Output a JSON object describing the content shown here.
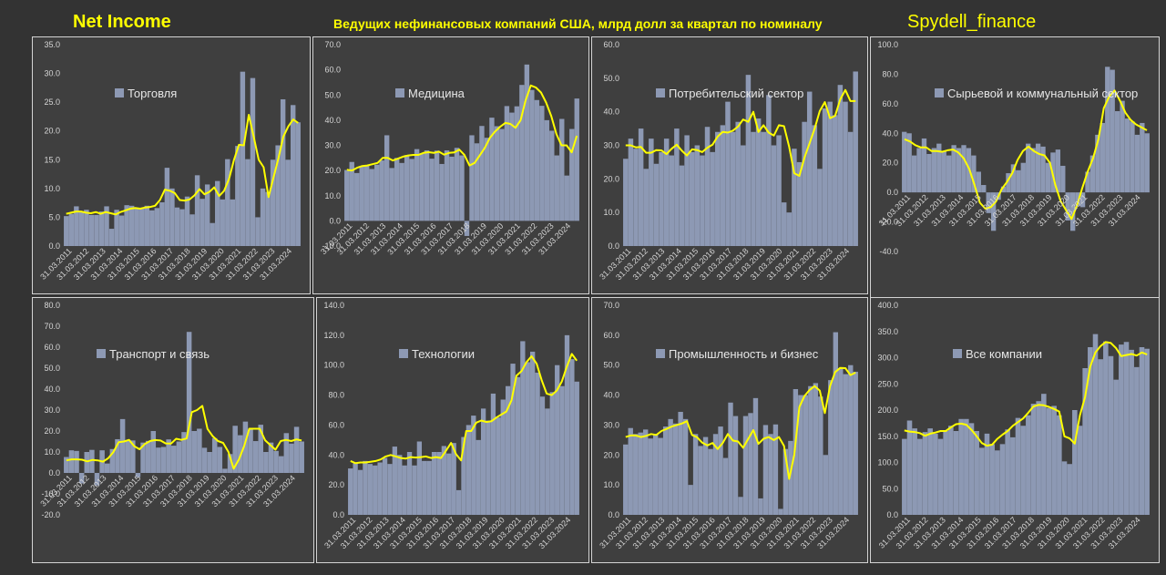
{
  "header": {
    "left_title": "Net Income",
    "center_title": "Ведущих нефинансовых компаний США, млрд долл за квартал по номиналу",
    "right_title": "Spydell_finance"
  },
  "colors": {
    "bar": "#8d99b4",
    "line": "#ffff00",
    "panel": "#3f3f3f",
    "border": "#d4d4d4",
    "tick": "#d6d6d6"
  },
  "chart_data": [
    {
      "type": "bar",
      "legend": "Торговля",
      "ylim": [
        0,
        35
      ],
      "ytick_step": 5,
      "ytick_decimals": 1,
      "x_labels": [
        "31.03.2011",
        "31.03.2012",
        "31.03.2013",
        "31.03.2014",
        "31.03.2015",
        "31.03.2016",
        "31.03.2017",
        "31.03.2018",
        "31.03.2019",
        "31.03.2020",
        "31.03.2021",
        "31.03.2022",
        "31.03.2023",
        "31.03.2024"
      ],
      "values": [
        5.2,
        5.6,
        6.9,
        6.0,
        6.3,
        5.4,
        5.4,
        6.0,
        6.9,
        3.0,
        6.3,
        5.3,
        7.1,
        7.0,
        6.6,
        6.5,
        7.0,
        6.2,
        6.6,
        7.6,
        13.6,
        10.0,
        6.7,
        6.4,
        8.6,
        5.5,
        12.3,
        8.2,
        10.7,
        4.0,
        11.3,
        8.1,
        15.1,
        8.1,
        17.4,
        30.3,
        15.1,
        29.2,
        5.0,
        10.0,
        9.4,
        15.0,
        17.5,
        25.5,
        15.0,
        24.5,
        21.5
      ],
      "moving_avg": [
        5.6,
        5.8,
        6.0,
        6.0,
        5.8,
        5.7,
        5.9,
        5.6,
        5.9,
        5.7,
        5.5,
        5.9,
        6.2,
        6.5,
        6.6,
        6.5,
        6.7,
        6.8,
        7.0,
        8.0,
        9.8,
        9.6,
        9.2,
        8.0,
        7.9,
        8.1,
        8.8,
        9.9,
        9.0,
        9.4,
        10.2,
        8.7,
        9.6,
        11.7,
        15.0,
        17.6,
        17.5,
        22.8,
        19.0,
        15.0,
        13.7,
        8.5,
        11.9,
        15.2,
        19.0,
        20.8,
        22.0,
        21.4
      ]
    },
    {
      "type": "bar",
      "legend": "Медицина",
      "ylim": [
        -10,
        70
      ],
      "ytick_step": 10,
      "ytick_decimals": 1,
      "x_labels": [
        "31.03.2011",
        "31.03.2012",
        "31.03.2013",
        "31.03.2014",
        "31.03.2015",
        "31.03.2016",
        "31.03.2017",
        "31.03.2018",
        "31.03.2019",
        "31.03.2020",
        "31.03.2021",
        "31.03.2022",
        "31.03.2023",
        "31.03.2024"
      ],
      "values": [
        20.2,
        23.4,
        19.0,
        21.7,
        22.0,
        20.6,
        22.3,
        24.0,
        34.0,
        21.0,
        25.0,
        23.0,
        26.1,
        24.6,
        28.5,
        26.8,
        28.0,
        24.7,
        27.9,
        22.6,
        28.0,
        25.5,
        29.0,
        26.0,
        -6.0,
        34.0,
        30.8,
        37.7,
        33.0,
        41.0,
        37.6,
        36.5,
        45.6,
        43.0,
        45.5,
        54.0,
        62.1,
        52.0,
        48.0,
        45.7,
        40.0,
        35.8,
        26.0,
        40.5,
        18.0,
        36.5,
        48.6
      ],
      "moving_avg": [
        20.3,
        20.0,
        21.1,
        21.8,
        22.0,
        22.5,
        23.0,
        25.0,
        25.0,
        24.0,
        24.7,
        25.5,
        26.0,
        26.2,
        26.2,
        27.0,
        27.3,
        27.0,
        27.5,
        26.3,
        27.0,
        27.2,
        28.3,
        26.2,
        22.0,
        23.0,
        26.0,
        29.0,
        33.0,
        35.5,
        37.4,
        38.9,
        38.5,
        37.0,
        40.0,
        48.0,
        53.8,
        53.0,
        51.0,
        47.0,
        41.6,
        34.5,
        30.0,
        30.0,
        27.2,
        33.8
      ]
    },
    {
      "type": "bar",
      "legend": "Потребительский сектор",
      "ylim": [
        0,
        60
      ],
      "ytick_step": 10,
      "ytick_decimals": 1,
      "x_labels": [
        "31.03.2011",
        "31.03.2012",
        "31.03.2013",
        "31.03.2014",
        "31.03.2015",
        "31.03.2016",
        "31.03.2017",
        "31.03.2018",
        "31.03.2019",
        "31.03.2020",
        "31.03.2021",
        "31.03.2022",
        "31.03.2023",
        "31.03.2024"
      ],
      "values": [
        26.0,
        32.0,
        29.0,
        35.0,
        23.0,
        32.0,
        24.5,
        28.0,
        32.0,
        27.0,
        35.0,
        24.0,
        33.0,
        28.0,
        30.0,
        27.0,
        35.5,
        28.0,
        34.0,
        36.0,
        43.0,
        34.0,
        37.0,
        30.0,
        51.0,
        34.0,
        38.0,
        34.0,
        45.0,
        30.0,
        33.0,
        13.0,
        10.0,
        29.0,
        25.0,
        37.0,
        46.0,
        36.0,
        23.0,
        41.0,
        43.0,
        39.0,
        48.0,
        43.0,
        34.0,
        52.0
      ],
      "moving_avg": [
        30.0,
        30.0,
        29.4,
        29.5,
        27.8,
        27.8,
        28.6,
        28.5,
        27.4,
        29.0,
        30.2,
        28.4,
        27.0,
        28.8,
        28.6,
        28.0,
        29.3,
        30.2,
        32.6,
        34.0,
        33.8,
        34.4,
        35.6,
        37.7,
        37.0,
        40.0,
        34.0,
        36.0,
        33.8,
        32.9,
        36.0,
        35.7,
        29.6,
        21.7,
        20.9,
        26.3,
        30.6,
        35.0,
        40.2,
        42.9,
        38.1,
        38.8,
        43.7,
        46.5,
        43.2,
        43.2
      ]
    },
    {
      "type": "bar",
      "legend": "Сырьевой и коммунальный сектор",
      "ylim": [
        -40,
        100
      ],
      "ytick_step": 20,
      "ytick_decimals": 1,
      "x_labels": [
        "31.03.2011",
        "31.03.2012",
        "31.03.2013",
        "31.03.2014",
        "31.03.2015",
        "31.03.2016",
        "31.03.2017",
        "31.03.2018",
        "31.03.2019",
        "31.03.2020",
        "31.03.2021",
        "31.03.2022",
        "31.03.2023",
        "31.03.2024"
      ],
      "values": [
        41.0,
        40.0,
        25.0,
        30.0,
        36.5,
        26.0,
        30.0,
        33.0,
        28.0,
        25.0,
        32.0,
        30.0,
        32.0,
        30.0,
        25.0,
        14.0,
        5.0,
        -14.0,
        -26.0,
        -5.0,
        4.0,
        13.0,
        19.0,
        15.0,
        20.0,
        33.0,
        30.0,
        33.0,
        31.0,
        20.0,
        27.0,
        29.0,
        18.0,
        -19.0,
        -26.0,
        -9.0,
        -10.0,
        14.0,
        25.0,
        39.0,
        47.0,
        85.0,
        83.0,
        55.0,
        62.0,
        50.0,
        48.0,
        39.0,
        47.0,
        40.0
      ],
      "moving_avg": [
        36.0,
        34.5,
        32.0,
        30.5,
        30.5,
        28.0,
        28.0,
        27.5,
        28.5,
        29.0,
        27.0,
        23.0,
        16.0,
        5.0,
        -7.0,
        -11.0,
        -10.0,
        -6.0,
        2.0,
        7.0,
        13.0,
        22.0,
        28.0,
        31.0,
        28.0,
        26.0,
        25.0,
        20.0,
        5.0,
        -6.0,
        -12.0,
        -18.0,
        -9.0,
        3.0,
        14.0,
        23.0,
        36.0,
        57.0,
        65.0,
        69.0,
        62.0,
        54.0,
        49.0,
        46.0,
        44.0,
        42.0
      ]
    },
    {
      "type": "bar",
      "legend": "Транспорт и связь",
      "ylim": [
        -20,
        80
      ],
      "ytick_step": 10,
      "ytick_decimals": 1,
      "x_labels": [
        "31.03.2011",
        "31.03.2012",
        "31.03.2013",
        "31.03.2014",
        "31.03.2015",
        "31.03.2016",
        "31.03.2017",
        "31.03.2018",
        "31.03.2019",
        "31.03.2020",
        "31.03.2021",
        "31.03.2022",
        "31.03.2023",
        "31.03.2024"
      ],
      "values": [
        7.6,
        10.8,
        10.5,
        -5.0,
        10.0,
        11.0,
        -6.0,
        10.8,
        4.5,
        11.4,
        16.1,
        25.7,
        15.3,
        15.5,
        -2.0,
        14.5,
        15.3,
        20.0,
        12.1,
        12.4,
        16.0,
        13.0,
        15.0,
        19.5,
        67.3,
        20.0,
        21.1,
        12.0,
        10.0,
        16.6,
        12.4,
        2.0,
        9.0,
        22.5,
        18.0,
        24.5,
        21.0,
        15.2,
        23.0,
        10.0,
        14.5,
        10.5,
        8.0,
        19.0,
        14.0,
        22.0,
        15.0
      ],
      "moving_avg": [
        6.0,
        6.5,
        6.5,
        6.3,
        5.5,
        6.2,
        6.0,
        5.4,
        7.0,
        10.0,
        14.7,
        15.0,
        15.8,
        12.7,
        11.3,
        13.8,
        15.2,
        15.7,
        15.5,
        14.1,
        14.0,
        16.3,
        15.8,
        16.5,
        29.0,
        30.0,
        32.0,
        21.0,
        17.5,
        15.2,
        14.3,
        10.0,
        2.0,
        6.5,
        12.8,
        21.1,
        21.1,
        21.1,
        15.6,
        13.3,
        11.1,
        15.2,
        15.8,
        15.2,
        16.0,
        15.5
      ]
    },
    {
      "type": "bar",
      "legend": "Технологии",
      "ylim": [
        0,
        140
      ],
      "ytick_step": 20,
      "ytick_decimals": 1,
      "x_labels": [
        "31.03.2011",
        "31.03.2012",
        "31.03.2013",
        "31.03.2014",
        "31.03.2015",
        "31.03.2016",
        "31.03.2017",
        "31.03.2018",
        "31.03.2019",
        "31.03.2020",
        "31.03.2021",
        "31.03.2022",
        "31.03.2023",
        "31.03.2024"
      ],
      "values": [
        31.0,
        34.5,
        30.0,
        36.0,
        34.0,
        33.0,
        35.0,
        38.0,
        34.0,
        45.6,
        40.0,
        33.0,
        42.0,
        33.0,
        49.0,
        36.0,
        36.0,
        42.0,
        42.0,
        46.0,
        41.0,
        48.0,
        16.5,
        52.0,
        60.0,
        66.3,
        50.0,
        71.0,
        63.0,
        81.0,
        65.0,
        77.0,
        86.0,
        101.0,
        92.0,
        116.0,
        102.0,
        109.0,
        95.0,
        79.0,
        71.0,
        82.0,
        100.0,
        86.0,
        120.0,
        104.0,
        89.0
      ],
      "moving_avg": [
        36.0,
        34.5,
        35.0,
        35.0,
        35.5,
        36.0,
        37.0,
        39.0,
        40.0,
        39.0,
        38.0,
        37.6,
        38.6,
        38.3,
        38.6,
        39.0,
        38.0,
        38.6,
        38.0,
        43.0,
        48.0,
        40.5,
        36.4,
        56.0,
        56.0,
        61.6,
        63.0,
        62.0,
        62.5,
        65.0,
        67.0,
        69.0,
        76.5,
        93.0,
        96.0,
        102.0,
        106.0,
        101.0,
        90.0,
        81.0,
        80.0,
        83.0,
        89.0,
        99.0,
        107.5,
        103.0
      ]
    },
    {
      "type": "bar",
      "legend": "Промышленность и бизнес",
      "ylim": [
        0,
        70
      ],
      "ytick_step": 10,
      "ytick_decimals": 1,
      "x_labels": [
        "31.03.2011",
        "31.03.2012",
        "31.03.2013",
        "31.03.2014",
        "31.03.2015",
        "31.03.2016",
        "31.03.2017",
        "31.03.2018",
        "31.03.2019",
        "31.03.2020",
        "31.03.2021",
        "31.03.2022",
        "31.03.2023",
        "31.03.2024"
      ],
      "values": [
        23.5,
        29.0,
        27.0,
        27.5,
        28.5,
        25.5,
        27.0,
        25.7,
        29.5,
        32.0,
        30.5,
        34.4,
        32.0,
        10.0,
        27.0,
        23.0,
        26.0,
        22.0,
        27.0,
        29.5,
        19.0,
        37.5,
        33.0,
        6.0,
        33.0,
        34.0,
        39.0,
        5.5,
        30.0,
        27.0,
        30.2,
        2.0,
        22.0,
        24.7,
        42.0,
        40.0,
        40.0,
        43.0,
        44.0,
        39.5,
        20.0,
        45.0,
        61.0,
        49.0,
        47.0,
        50.0,
        47.8
      ],
      "moving_avg": [
        26.0,
        26.5,
        26.5,
        26.0,
        26.4,
        27.0,
        26.7,
        28.0,
        28.7,
        29.5,
        30.0,
        30.5,
        31.3,
        26.7,
        25.9,
        24.1,
        23.2,
        24.0,
        22.0,
        24.0,
        27.0,
        24.8,
        24.5,
        22.4,
        25.4,
        28.3,
        23.7,
        25.4,
        26.0,
        25.0,
        26.0,
        23.0,
        12.0,
        20.0,
        36.0,
        39.7,
        41.7,
        43.0,
        41.5,
        34.0,
        43.0,
        47.7,
        49.1,
        49.0,
        46.7,
        47.5
      ]
    },
    {
      "type": "bar",
      "legend": "Все компании",
      "ylim": [
        0,
        400
      ],
      "ytick_step": 50,
      "ytick_decimals": 1,
      "x_labels": [
        "31.03.2011",
        "31.03.2012",
        "31.03.2013",
        "31.03.2014",
        "31.03.2015",
        "31.03.2016",
        "31.03.2017",
        "31.03.2018",
        "31.03.2019",
        "31.03.2020",
        "31.03.2021",
        "31.03.2022",
        "31.03.2023",
        "31.03.2024"
      ],
      "values": [
        145.0,
        180.0,
        165.0,
        145.0,
        158.0,
        165.0,
        155.0,
        145.0,
        160.0,
        170.0,
        160.0,
        183.0,
        183.0,
        175.0,
        160.0,
        128.0,
        155.0,
        135.0,
        123.0,
        135.0,
        163.0,
        148.0,
        185.0,
        170.0,
        190.0,
        212.0,
        217.0,
        231.0,
        204.0,
        208.0,
        190.0,
        102.0,
        97.0,
        200.0,
        170.0,
        280.0,
        320.0,
        345.0,
        297.0,
        331.0,
        303.0,
        258.0,
        325.0,
        330.0,
        315.0,
        282.0,
        320.0,
        317.0
      ],
      "moving_avg": [
        161.0,
        159.0,
        158.0,
        156.0,
        151.0,
        155.0,
        157.0,
        160.0,
        160.0,
        167.0,
        173.0,
        174.0,
        172.0,
        162.0,
        150.0,
        137.0,
        132.0,
        134.0,
        145.0,
        153.0,
        160.0,
        170.0,
        177.0,
        184.0,
        195.0,
        207.0,
        210.0,
        209.0,
        206.0,
        202.0,
        197.0,
        150.0,
        146.0,
        136.0,
        190.0,
        225.0,
        283.0,
        310.0,
        322.0,
        330.0,
        328.0,
        318.0,
        303.0,
        305.0,
        307.0,
        304.0,
        310.0,
        306.0
      ]
    }
  ]
}
